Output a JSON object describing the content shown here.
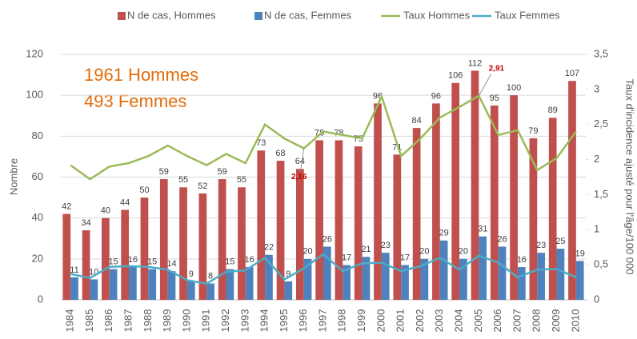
{
  "chart_data": {
    "type": "bar",
    "categories": [
      "1984",
      "1985",
      "1986",
      "1987",
      "1988",
      "1989",
      "1990",
      "1991",
      "1992",
      "1993",
      "1994",
      "1995",
      "1996",
      "1997",
      "1998",
      "1999",
      "2000",
      "2001",
      "2002",
      "2003",
      "2004",
      "2005",
      "2006",
      "2007",
      "2008",
      "2009",
      "2010"
    ],
    "series": [
      {
        "name": "N de cas, Hommes",
        "type": "bar",
        "color": "#c0504d",
        "values": [
          42,
          34,
          40,
          44,
          50,
          59,
          55,
          52,
          59,
          55,
          73,
          68,
          64,
          78,
          78,
          75,
          96,
          71,
          84,
          96,
          106,
          112,
          95,
          100,
          79,
          89,
          107
        ]
      },
      {
        "name": "N de cas, Femmes",
        "type": "bar",
        "color": "#4f81bd",
        "values": [
          11,
          10,
          15,
          16,
          15,
          14,
          9,
          8,
          15,
          16,
          22,
          9,
          20,
          26,
          17,
          21,
          23,
          17,
          20,
          29,
          20,
          31,
          26,
          16,
          23,
          25,
          19
        ]
      },
      {
        "name": "Taux Hommes",
        "type": "line",
        "axis": "y2",
        "color": "#9bbb59",
        "values": [
          1.92,
          1.72,
          1.9,
          1.95,
          2.05,
          2.2,
          2.05,
          1.92,
          2.08,
          1.95,
          2.5,
          2.3,
          2.16,
          2.4,
          2.35,
          2.3,
          2.9,
          2.05,
          2.3,
          2.6,
          2.75,
          2.91,
          2.35,
          2.42,
          1.85,
          2.02,
          2.4
        ],
        "value_labels": [
          null,
          null,
          null,
          null,
          null,
          null,
          null,
          null,
          null,
          null,
          null,
          null,
          "2,16",
          null,
          null,
          null,
          null,
          null,
          null,
          null,
          null,
          "2,91",
          null,
          null,
          null,
          null,
          null
        ]
      },
      {
        "name": "Taux Femmes",
        "type": "line",
        "axis": "y2",
        "color": "#4bacc6",
        "values": [
          0.37,
          0.31,
          0.47,
          0.48,
          0.47,
          0.43,
          0.28,
          0.23,
          0.4,
          0.42,
          0.6,
          0.29,
          0.45,
          0.65,
          0.41,
          0.52,
          0.53,
          0.41,
          0.48,
          0.6,
          0.43,
          0.63,
          0.53,
          0.32,
          0.43,
          0.44,
          0.32
        ]
      }
    ],
    "ylabel": "Nombre",
    "y2label": "Taux d'incidence ajusté pour l'âge/100 000",
    "ylim": [
      0,
      120
    ],
    "yticks": [
      0,
      20,
      40,
      60,
      80,
      100,
      120
    ],
    "y2lim": [
      0,
      3.5
    ],
    "y2ticks": [
      0,
      {
        "value": 0.5,
        "label": "0,5"
      },
      1,
      {
        "value": 1.5,
        "label": "1,5"
      },
      2,
      {
        "value": 2.5,
        "label": "2,5"
      },
      3,
      {
        "value": 3.5,
        "label": "3,5"
      }
    ],
    "grid": true,
    "legend": "top",
    "annotations": [
      "1961 Hommes",
      "493 Femmes"
    ]
  }
}
